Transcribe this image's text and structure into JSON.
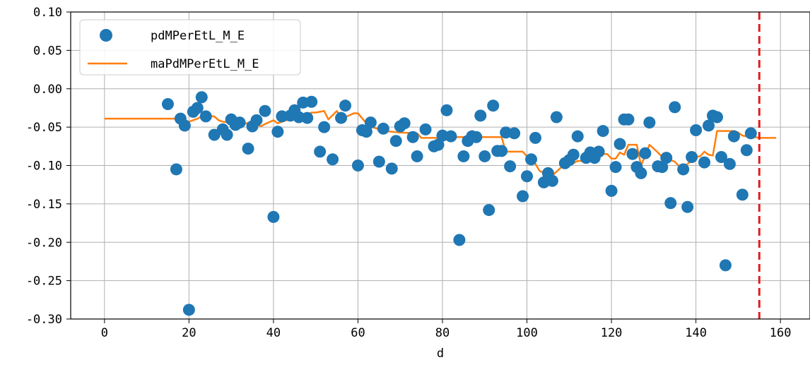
{
  "chart_data": {
    "type": "scatter",
    "xlabel": "d",
    "ylabel": "",
    "xlim": [
      -8,
      167
    ],
    "ylim": [
      -0.3,
      0.1
    ],
    "xticks": [
      0,
      20,
      40,
      60,
      80,
      100,
      120,
      140,
      160
    ],
    "yticks": [
      -0.3,
      -0.25,
      -0.2,
      -0.15,
      -0.1,
      -0.05,
      0.0,
      0.05,
      0.1
    ],
    "xtick_labels": [
      "0",
      "20",
      "40",
      "60",
      "80",
      "100",
      "120",
      "140",
      "160"
    ],
    "ytick_labels": [
      "-0.30",
      "-0.25",
      "-0.20",
      "-0.15",
      "-0.10",
      "-0.05",
      "0.00",
      "0.05",
      "0.10"
    ],
    "grid": true,
    "legend_position": "upper-left",
    "colors": {
      "scatter": "#1f77b4",
      "line": "#ff7f0e",
      "vline": "#e41a1c"
    },
    "series": [
      {
        "name": "pdMPerEtL_M_E",
        "kind": "scatter",
        "x": [
          15,
          17,
          18,
          19,
          20,
          21,
          22,
          23,
          24,
          26,
          28,
          29,
          30,
          31,
          32,
          34,
          35,
          36,
          38,
          40,
          41,
          42,
          44,
          45,
          46,
          47,
          48,
          49,
          51,
          52,
          54,
          56,
          57,
          60,
          61,
          62,
          63,
          65,
          66,
          68,
          69,
          70,
          71,
          73,
          74,
          76,
          78,
          79,
          80,
          81,
          82,
          84,
          85,
          86,
          87,
          88,
          89,
          90,
          91,
          92,
          93,
          94,
          95,
          96,
          97,
          99,
          100,
          101,
          102,
          104,
          105,
          106,
          107,
          109,
          110,
          111,
          112,
          114,
          115,
          116,
          117,
          118,
          120,
          121,
          122,
          123,
          124,
          125,
          126,
          127,
          128,
          129,
          131,
          132,
          133,
          134,
          135,
          137,
          138,
          139,
          140,
          142,
          143,
          144,
          145,
          146,
          147,
          148,
          149,
          151,
          152,
          153
        ],
        "y": [
          -0.02,
          -0.105,
          -0.039,
          -0.048,
          -0.288,
          -0.03,
          -0.025,
          -0.011,
          -0.036,
          -0.06,
          -0.053,
          -0.06,
          -0.04,
          -0.047,
          -0.044,
          -0.078,
          -0.049,
          -0.041,
          -0.029,
          -0.167,
          -0.056,
          -0.036,
          -0.035,
          -0.028,
          -0.037,
          -0.018,
          -0.038,
          -0.017,
          -0.082,
          -0.05,
          -0.092,
          -0.038,
          -0.022,
          -0.1,
          -0.054,
          -0.056,
          -0.044,
          -0.095,
          -0.052,
          -0.104,
          -0.068,
          -0.049,
          -0.045,
          -0.063,
          -0.088,
          -0.053,
          -0.075,
          -0.073,
          -0.061,
          -0.028,
          -0.062,
          -0.197,
          -0.088,
          -0.068,
          -0.062,
          -0.063,
          -0.035,
          -0.088,
          -0.158,
          -0.022,
          -0.081,
          -0.081,
          -0.057,
          -0.101,
          -0.058,
          -0.14,
          -0.114,
          -0.092,
          -0.064,
          -0.122,
          -0.11,
          -0.12,
          -0.037,
          -0.097,
          -0.093,
          -0.086,
          -0.062,
          -0.09,
          -0.083,
          -0.09,
          -0.082,
          -0.055,
          -0.133,
          -0.102,
          -0.072,
          -0.04,
          -0.04,
          -0.085,
          -0.102,
          -0.11,
          -0.084,
          -0.044,
          -0.101,
          -0.102,
          -0.09,
          -0.149,
          -0.024,
          -0.105,
          -0.154,
          -0.089,
          -0.054,
          -0.096,
          -0.048,
          -0.035,
          -0.037,
          -0.089,
          -0.23,
          -0.098,
          -0.062,
          -0.138,
          -0.08,
          -0.058
        ]
      },
      {
        "name": "maPdMPerEtL_M_E",
        "kind": "line",
        "x": [
          0,
          18,
          19,
          20,
          21,
          22,
          23,
          26,
          27,
          28,
          30,
          32,
          33,
          35,
          36,
          37,
          38,
          40,
          41,
          43,
          44,
          45,
          46,
          47,
          48,
          49,
          50,
          51,
          52,
          53,
          55,
          56,
          57,
          59,
          60,
          62,
          63,
          66,
          70,
          74,
          75,
          80,
          82,
          83,
          90,
          94,
          95,
          97,
          99,
          101,
          102,
          103,
          105,
          106,
          107,
          108,
          109,
          111,
          112,
          113,
          115,
          116,
          117,
          119,
          120,
          121,
          122,
          123,
          124,
          125,
          126,
          127,
          128,
          129,
          130,
          131,
          132,
          133,
          134,
          135,
          136,
          137,
          138,
          139,
          140,
          141,
          142,
          143,
          144,
          145,
          146,
          147,
          148,
          149,
          150,
          151,
          153,
          154,
          155,
          159
        ],
        "y": [
          -0.039,
          -0.039,
          -0.041,
          -0.043,
          -0.041,
          -0.039,
          -0.036,
          -0.036,
          -0.041,
          -0.043,
          -0.044,
          -0.046,
          -0.046,
          -0.043,
          -0.046,
          -0.049,
          -0.046,
          -0.041,
          -0.045,
          -0.041,
          -0.04,
          -0.038,
          -0.04,
          -0.038,
          -0.036,
          -0.031,
          -0.031,
          -0.03,
          -0.029,
          -0.04,
          -0.029,
          -0.037,
          -0.037,
          -0.032,
          -0.032,
          -0.045,
          -0.049,
          -0.055,
          -0.057,
          -0.058,
          -0.064,
          -0.064,
          -0.063,
          -0.063,
          -0.063,
          -0.063,
          -0.082,
          -0.082,
          -0.082,
          -0.094,
          -0.098,
          -0.107,
          -0.113,
          -0.113,
          -0.108,
          -0.103,
          -0.098,
          -0.097,
          -0.094,
          -0.094,
          -0.091,
          -0.086,
          -0.085,
          -0.085,
          -0.091,
          -0.091,
          -0.083,
          -0.086,
          -0.073,
          -0.073,
          -0.073,
          -0.1,
          -0.087,
          -0.073,
          -0.078,
          -0.083,
          -0.089,
          -0.095,
          -0.093,
          -0.095,
          -0.101,
          -0.101,
          -0.098,
          -0.094,
          -0.089,
          -0.088,
          -0.082,
          -0.086,
          -0.087,
          -0.055,
          -0.055,
          -0.055,
          -0.055,
          -0.055,
          -0.057,
          -0.061,
          -0.063,
          -0.063,
          -0.064,
          -0.064
        ]
      }
    ],
    "vertical_line": {
      "x": 155,
      "style": "dashed"
    }
  }
}
